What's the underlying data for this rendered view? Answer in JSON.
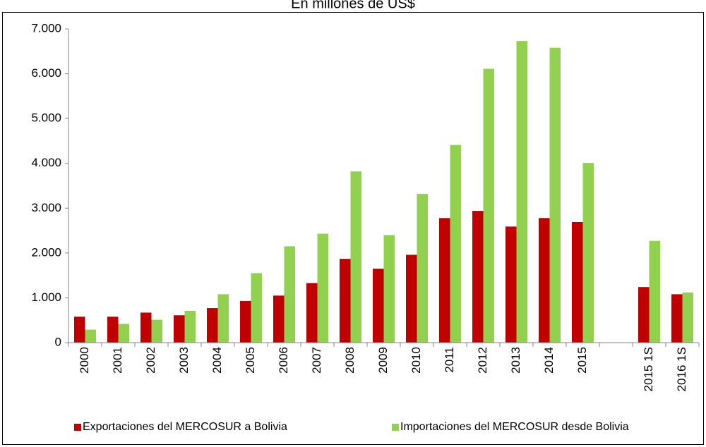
{
  "chart_data": {
    "type": "bar",
    "title": "En millones de US$",
    "categories": [
      "2000",
      "2001",
      "2002",
      "2003",
      "2004",
      "2005",
      "2006",
      "2007",
      "2008",
      "2009",
      "2010",
      "2011",
      "2012",
      "2013",
      "2014",
      "2015",
      null,
      "2015 1S",
      "2016 1S"
    ],
    "series": [
      {
        "name": "Exportaciones del MERCOSUR a Bolivia",
        "color": "#c00000",
        "values": [
          580,
          580,
          670,
          610,
          770,
          930,
          1050,
          1330,
          1870,
          1650,
          1960,
          2780,
          2940,
          2590,
          2780,
          2690,
          null,
          1240,
          1080
        ]
      },
      {
        "name": "Importaciones del MERCOSUR desde Bolivia",
        "color": "#92d050",
        "values": [
          290,
          420,
          510,
          710,
          1080,
          1550,
          2150,
          2430,
          3820,
          2400,
          3320,
          4410,
          6110,
          6730,
          6580,
          4010,
          null,
          2270,
          1120
        ]
      }
    ],
    "ylim": [
      0,
      7000
    ],
    "yticks": [
      0,
      {
        "value": 1000,
        "label": "1.000"
      },
      {
        "value": 2000,
        "label": "2.000"
      },
      {
        "value": 3000,
        "label": "3.000"
      },
      {
        "value": 4000,
        "label": "4.000"
      },
      {
        "value": 5000,
        "label": "5.000"
      },
      {
        "value": 6000,
        "label": "6.000"
      },
      {
        "value": 7000,
        "label": "7.000"
      }
    ],
    "grid": false,
    "legend": "bottom"
  }
}
